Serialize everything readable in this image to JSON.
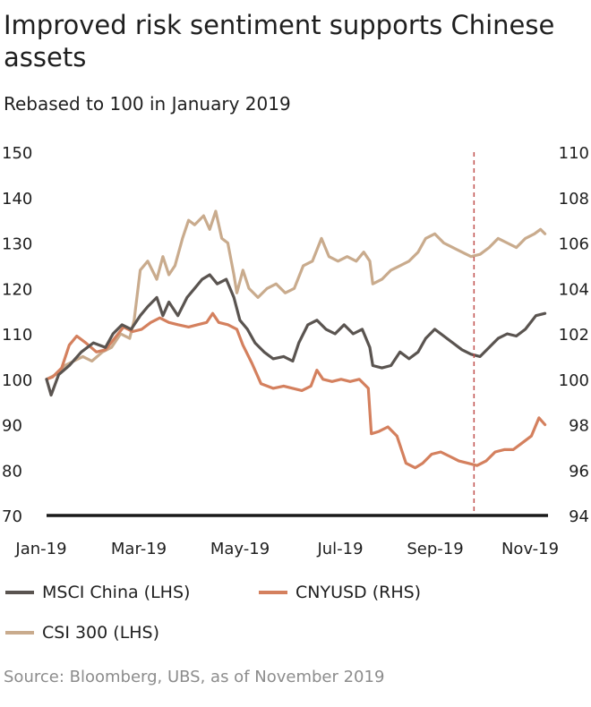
{
  "title": "Improved risk sentiment supports Chinese assets",
  "subtitle": "Rebased to 100 in January 2019",
  "source": "Source: Bloomberg, UBS, as of November 2019",
  "colors": {
    "msci": "#5a5450",
    "cny": "#d4805e",
    "csi": "#c9ab8d",
    "reference_line": "#c0504d",
    "axis": "#1a1a1a"
  },
  "chart_data": {
    "type": "line",
    "x_ticks": [
      "Jan-19",
      "Mar-19",
      "May-19",
      "Jul-19",
      "Sep-19",
      "Nov-19"
    ],
    "x_range": [
      "2019-01-02",
      "2019-11-30"
    ],
    "ylim_left": [
      70,
      150
    ],
    "yticks_left": [
      150,
      140,
      130,
      120,
      110,
      100,
      90,
      80,
      70
    ],
    "ylim_right": [
      94,
      110
    ],
    "yticks_right": [
      110,
      108,
      106,
      104,
      102,
      100,
      98,
      96,
      94
    ],
    "grid": false,
    "reference_line_date": "2019-10-12",
    "series": [
      {
        "name": "MSCI China (LHS)",
        "axis": "left",
        "points": [
          [
            "2019-01-02",
            100
          ],
          [
            "2019-01-05",
            96.5
          ],
          [
            "2019-01-10",
            101
          ],
          [
            "2019-01-17",
            103
          ],
          [
            "2019-01-25",
            106
          ],
          [
            "2019-02-02",
            108
          ],
          [
            "2019-02-10",
            107
          ],
          [
            "2019-02-15",
            110
          ],
          [
            "2019-02-21",
            112
          ],
          [
            "2019-02-27",
            111
          ],
          [
            "2019-03-05",
            114
          ],
          [
            "2019-03-10",
            116
          ],
          [
            "2019-03-16",
            118
          ],
          [
            "2019-03-20",
            114
          ],
          [
            "2019-03-24",
            117
          ],
          [
            "2019-03-30",
            114
          ],
          [
            "2019-04-05",
            118
          ],
          [
            "2019-04-10",
            120
          ],
          [
            "2019-04-15",
            122
          ],
          [
            "2019-04-20",
            123
          ],
          [
            "2019-04-25",
            121
          ],
          [
            "2019-05-01",
            122
          ],
          [
            "2019-05-06",
            118
          ],
          [
            "2019-05-10",
            113
          ],
          [
            "2019-05-15",
            111
          ],
          [
            "2019-05-20",
            108
          ],
          [
            "2019-05-26",
            106
          ],
          [
            "2019-06-01",
            104.5
          ],
          [
            "2019-06-08",
            105
          ],
          [
            "2019-06-14",
            104
          ],
          [
            "2019-06-18",
            108
          ],
          [
            "2019-06-24",
            112
          ],
          [
            "2019-06-30",
            113
          ],
          [
            "2019-07-06",
            111
          ],
          [
            "2019-07-12",
            110
          ],
          [
            "2019-07-18",
            112
          ],
          [
            "2019-07-24",
            110
          ],
          [
            "2019-07-30",
            111
          ],
          [
            "2019-08-04",
            107
          ],
          [
            "2019-08-06",
            103
          ],
          [
            "2019-08-12",
            102.5
          ],
          [
            "2019-08-18",
            103
          ],
          [
            "2019-08-24",
            106
          ],
          [
            "2019-08-30",
            104.5
          ],
          [
            "2019-09-05",
            106
          ],
          [
            "2019-09-10",
            109
          ],
          [
            "2019-09-16",
            111
          ],
          [
            "2019-09-22",
            109.5
          ],
          [
            "2019-09-28",
            108
          ],
          [
            "2019-10-04",
            106.5
          ],
          [
            "2019-10-10",
            105.5
          ],
          [
            "2019-10-16",
            105
          ],
          [
            "2019-10-22",
            107
          ],
          [
            "2019-10-28",
            109
          ],
          [
            "2019-11-03",
            110
          ],
          [
            "2019-11-09",
            109.5
          ],
          [
            "2019-11-15",
            111
          ],
          [
            "2019-11-22",
            114
          ],
          [
            "2019-11-28",
            114.5
          ]
        ]
      },
      {
        "name": "CNYUSD (RHS)",
        "axis": "right",
        "points": [
          [
            "2019-01-02",
            100
          ],
          [
            "2019-01-06",
            100.1
          ],
          [
            "2019-01-12",
            100.5
          ],
          [
            "2019-01-17",
            101.5
          ],
          [
            "2019-01-22",
            101.9
          ],
          [
            "2019-01-28",
            101.6
          ],
          [
            "2019-02-04",
            101.2
          ],
          [
            "2019-02-10",
            101.3
          ],
          [
            "2019-02-16",
            101.8
          ],
          [
            "2019-02-22",
            102.3
          ],
          [
            "2019-02-28",
            102.1
          ],
          [
            "2019-03-06",
            102.2
          ],
          [
            "2019-03-12",
            102.5
          ],
          [
            "2019-03-18",
            102.7
          ],
          [
            "2019-03-24",
            102.5
          ],
          [
            "2019-03-30",
            102.4
          ],
          [
            "2019-04-06",
            102.3
          ],
          [
            "2019-04-12",
            102.4
          ],
          [
            "2019-04-18",
            102.5
          ],
          [
            "2019-04-22",
            102.9
          ],
          [
            "2019-04-26",
            102.5
          ],
          [
            "2019-05-02",
            102.4
          ],
          [
            "2019-05-08",
            102.2
          ],
          [
            "2019-05-12",
            101.5
          ],
          [
            "2019-05-18",
            100.7
          ],
          [
            "2019-05-24",
            99.8
          ],
          [
            "2019-06-01",
            99.6
          ],
          [
            "2019-06-08",
            99.7
          ],
          [
            "2019-06-14",
            99.6
          ],
          [
            "2019-06-20",
            99.5
          ],
          [
            "2019-06-26",
            99.7
          ],
          [
            "2019-06-30",
            100.4
          ],
          [
            "2019-07-04",
            100.0
          ],
          [
            "2019-07-10",
            99.9
          ],
          [
            "2019-07-16",
            100.0
          ],
          [
            "2019-07-22",
            99.9
          ],
          [
            "2019-07-28",
            100.0
          ],
          [
            "2019-08-03",
            99.6
          ],
          [
            "2019-08-05",
            97.6
          ],
          [
            "2019-08-10",
            97.7
          ],
          [
            "2019-08-16",
            97.9
          ],
          [
            "2019-08-22",
            97.5
          ],
          [
            "2019-08-28",
            96.3
          ],
          [
            "2019-09-03",
            96.1
          ],
          [
            "2019-09-08",
            96.3
          ],
          [
            "2019-09-14",
            96.7
          ],
          [
            "2019-09-20",
            96.8
          ],
          [
            "2019-09-26",
            96.6
          ],
          [
            "2019-10-02",
            96.4
          ],
          [
            "2019-10-08",
            96.3
          ],
          [
            "2019-10-14",
            96.2
          ],
          [
            "2019-10-20",
            96.4
          ],
          [
            "2019-10-26",
            96.8
          ],
          [
            "2019-11-01",
            96.9
          ],
          [
            "2019-11-07",
            96.9
          ],
          [
            "2019-11-13",
            97.2
          ],
          [
            "2019-11-19",
            97.5
          ],
          [
            "2019-11-24",
            98.3
          ],
          [
            "2019-11-28",
            98.0
          ]
        ]
      },
      {
        "name": "CSI 300 (LHS)",
        "axis": "left",
        "points": [
          [
            "2019-01-02",
            100
          ],
          [
            "2019-01-08",
            101
          ],
          [
            "2019-01-14",
            103
          ],
          [
            "2019-01-20",
            104
          ],
          [
            "2019-01-26",
            105
          ],
          [
            "2019-02-01",
            104
          ],
          [
            "2019-02-08",
            106
          ],
          [
            "2019-02-14",
            107
          ],
          [
            "2019-02-20",
            110
          ],
          [
            "2019-02-26",
            109
          ],
          [
            "2019-03-01",
            113
          ],
          [
            "2019-03-05",
            124
          ],
          [
            "2019-03-10",
            126
          ],
          [
            "2019-03-16",
            122
          ],
          [
            "2019-03-20",
            127
          ],
          [
            "2019-03-24",
            123
          ],
          [
            "2019-03-28",
            125
          ],
          [
            "2019-04-02",
            131
          ],
          [
            "2019-04-06",
            135
          ],
          [
            "2019-04-10",
            134
          ],
          [
            "2019-04-16",
            136
          ],
          [
            "2019-04-20",
            133
          ],
          [
            "2019-04-24",
            137
          ],
          [
            "2019-04-28",
            131
          ],
          [
            "2019-05-02",
            130
          ],
          [
            "2019-05-06",
            123
          ],
          [
            "2019-05-08",
            119
          ],
          [
            "2019-05-12",
            124
          ],
          [
            "2019-05-16",
            120
          ],
          [
            "2019-05-22",
            118
          ],
          [
            "2019-05-28",
            120
          ],
          [
            "2019-06-03",
            121
          ],
          [
            "2019-06-09",
            119
          ],
          [
            "2019-06-15",
            120
          ],
          [
            "2019-06-21",
            125
          ],
          [
            "2019-06-27",
            126
          ],
          [
            "2019-07-03",
            131
          ],
          [
            "2019-07-08",
            127
          ],
          [
            "2019-07-14",
            126
          ],
          [
            "2019-07-20",
            127
          ],
          [
            "2019-07-26",
            126
          ],
          [
            "2019-07-31",
            128
          ],
          [
            "2019-08-04",
            126
          ],
          [
            "2019-08-06",
            121
          ],
          [
            "2019-08-12",
            122
          ],
          [
            "2019-08-18",
            124
          ],
          [
            "2019-08-24",
            125
          ],
          [
            "2019-08-30",
            126
          ],
          [
            "2019-09-05",
            128
          ],
          [
            "2019-09-10",
            131
          ],
          [
            "2019-09-16",
            132
          ],
          [
            "2019-09-22",
            130
          ],
          [
            "2019-09-28",
            129
          ],
          [
            "2019-10-04",
            128
          ],
          [
            "2019-10-10",
            127
          ],
          [
            "2019-10-16",
            127.5
          ],
          [
            "2019-10-22",
            129
          ],
          [
            "2019-10-28",
            131
          ],
          [
            "2019-11-03",
            130
          ],
          [
            "2019-11-09",
            129
          ],
          [
            "2019-11-15",
            131
          ],
          [
            "2019-11-21",
            132
          ],
          [
            "2019-11-25",
            133
          ],
          [
            "2019-11-28",
            132
          ]
        ]
      }
    ]
  }
}
